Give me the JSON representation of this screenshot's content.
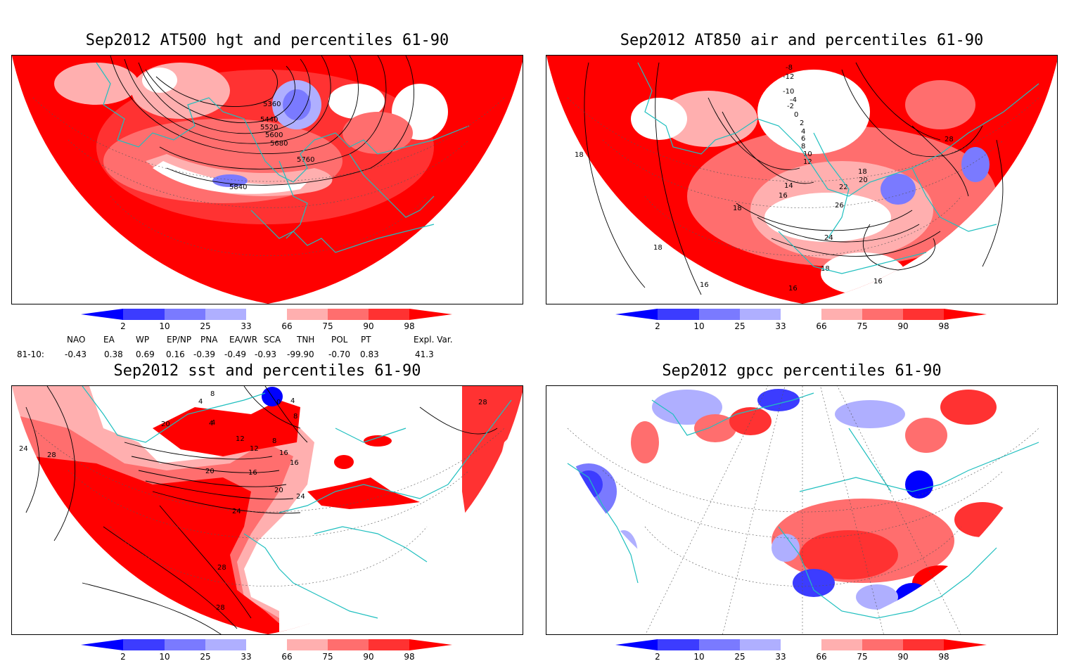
{
  "panels": [
    {
      "id": "p1",
      "title": "Sep2012 AT500 hgt and percentiles 61-90",
      "contour_labels": [
        "5360",
        "5440",
        "5520",
        "5600",
        "5680",
        "5760",
        "5840"
      ]
    },
    {
      "id": "p2",
      "title": "Sep2012 AT850 air and percentiles 61-90",
      "contour_labels": [
        "-8",
        "-12",
        "-10",
        "-4",
        "-2",
        "0",
        "2",
        "4",
        "6",
        "8",
        "10",
        "12",
        "14",
        "16",
        "18",
        "20",
        "22",
        "24",
        "26",
        "28",
        "18",
        "16",
        "16",
        "18",
        "18",
        "18",
        "16"
      ]
    },
    {
      "id": "p3",
      "title": "Sep2012 sst and percentiles 61-90",
      "contour_labels": [
        "4",
        "0",
        "4",
        "8",
        "8",
        "4",
        "12",
        "16",
        "20",
        "16",
        "20",
        "24",
        "24",
        "28",
        "28",
        "28",
        "28",
        "24",
        "20",
        "4",
        "8",
        "12",
        "16"
      ]
    },
    {
      "id": "p4",
      "title": "Sep2012 gpcc percentiles 61-90",
      "contour_labels": []
    }
  ],
  "colorbar": {
    "ticks": [
      "2",
      "10",
      "25",
      "33",
      "66",
      "75",
      "90",
      "98"
    ],
    "colors": [
      "#0000ff",
      "#3c3cff",
      "#7a7aff",
      "#afafff",
      "#ffffff",
      "#ffafaf",
      "#ff6e6e",
      "#ff3232",
      "#ff0000"
    ]
  },
  "indices": {
    "row_label": "81-10:",
    "names": [
      "NAO",
      "EA",
      "WP",
      "EP/NP",
      "PNA",
      "EA/WR",
      "SCA",
      "TNH",
      "POL",
      "PT",
      "Expl. Var."
    ],
    "values": [
      "-0.43",
      "0.38",
      "0.69",
      "0.16",
      "-0.39",
      "-0.49",
      "-0.93",
      "-99.90",
      "-0.70",
      "0.83",
      "41.3"
    ]
  }
}
